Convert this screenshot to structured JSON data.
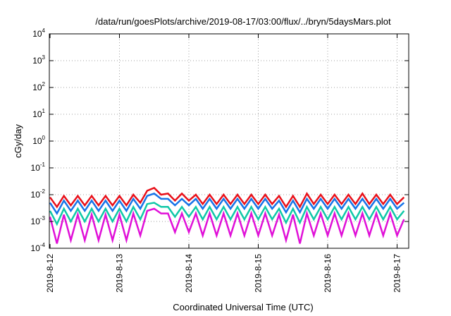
{
  "chart_data": {
    "type": "line",
    "title": "/data/run/goesPlots/archive/2019-08-17/03:00/flux/../bryn/5daysMars.plot",
    "xlabel": "Coordinated Universal Time (UTC)",
    "ylabel": "cGy/day",
    "y_scale": "log",
    "ylim": [
      0.0001,
      10000
    ],
    "xlim": [
      "2019-8-12",
      "2019-8-17 03:00"
    ],
    "x_ticks": [
      "2019-8-12",
      "2019-8-13",
      "2019-8-14",
      "2019-8-15",
      "2019-8-16",
      "2019-8-17"
    ],
    "y_ticks": [
      {
        "base": "10",
        "exp": "-4"
      },
      {
        "base": "10",
        "exp": "-3"
      },
      {
        "base": "10",
        "exp": "-2"
      },
      {
        "base": "10",
        "exp": "-1"
      },
      {
        "base": "10",
        "exp": "0"
      },
      {
        "base": "10",
        "exp": "1"
      },
      {
        "base": "10",
        "exp": "2"
      },
      {
        "base": "10",
        "exp": "3"
      },
      {
        "base": "10",
        "exp": "4"
      }
    ],
    "grid": true,
    "x_days": [
      0.0,
      0.1,
      0.2,
      0.3,
      0.4,
      0.5,
      0.6,
      0.7,
      0.8,
      0.9,
      1.0,
      1.1,
      1.2,
      1.3,
      1.4,
      1.5,
      1.6,
      1.7,
      1.8,
      1.9,
      2.0,
      2.1,
      2.2,
      2.3,
      2.4,
      2.5,
      2.6,
      2.7,
      2.8,
      2.9,
      3.0,
      3.1,
      3.2,
      3.3,
      3.4,
      3.5,
      3.6,
      3.7,
      3.8,
      3.9,
      4.0,
      4.1,
      4.2,
      4.3,
      4.4,
      4.5,
      4.6,
      4.7,
      4.8,
      4.9,
      5.0,
      5.1
    ],
    "series": [
      {
        "color": "#e8101a",
        "values": [
          0.008,
          0.0035,
          0.009,
          0.004,
          0.009,
          0.004,
          0.009,
          0.004,
          0.009,
          0.004,
          0.009,
          0.004,
          0.01,
          0.005,
          0.014,
          0.018,
          0.01,
          0.011,
          0.006,
          0.011,
          0.006,
          0.01,
          0.0045,
          0.01,
          0.0045,
          0.01,
          0.0045,
          0.01,
          0.0045,
          0.01,
          0.0045,
          0.01,
          0.0045,
          0.009,
          0.0035,
          0.009,
          0.0035,
          0.011,
          0.0045,
          0.01,
          0.0045,
          0.01,
          0.0045,
          0.01,
          0.0045,
          0.011,
          0.0045,
          0.01,
          0.0045,
          0.01,
          0.0045,
          0.008
        ]
      },
      {
        "color": "#1874e8",
        "values": [
          0.005,
          0.002,
          0.006,
          0.0025,
          0.006,
          0.0025,
          0.006,
          0.0025,
          0.006,
          0.0025,
          0.006,
          0.0025,
          0.007,
          0.003,
          0.009,
          0.011,
          0.007,
          0.007,
          0.004,
          0.007,
          0.004,
          0.007,
          0.003,
          0.007,
          0.003,
          0.007,
          0.003,
          0.007,
          0.003,
          0.007,
          0.003,
          0.007,
          0.003,
          0.006,
          0.0022,
          0.006,
          0.0022,
          0.007,
          0.003,
          0.007,
          0.003,
          0.007,
          0.003,
          0.007,
          0.003,
          0.007,
          0.003,
          0.007,
          0.003,
          0.007,
          0.003,
          0.005
        ]
      },
      {
        "color": "#10c8a8",
        "values": [
          0.0025,
          0.0008,
          0.003,
          0.001,
          0.003,
          0.001,
          0.003,
          0.001,
          0.003,
          0.001,
          0.003,
          0.001,
          0.0035,
          0.0012,
          0.0045,
          0.005,
          0.0035,
          0.0035,
          0.0015,
          0.0035,
          0.0015,
          0.0035,
          0.0012,
          0.0035,
          0.0012,
          0.0035,
          0.0012,
          0.0035,
          0.0012,
          0.0035,
          0.0012,
          0.0035,
          0.0012,
          0.003,
          0.0009,
          0.003,
          0.0009,
          0.0035,
          0.0012,
          0.0035,
          0.0012,
          0.0035,
          0.0012,
          0.0035,
          0.0012,
          0.0035,
          0.0012,
          0.0035,
          0.0012,
          0.0035,
          0.0012,
          0.0025
        ]
      },
      {
        "color": "#e010d8",
        "values": [
          0.0015,
          0.00015,
          0.0018,
          0.0002,
          0.0018,
          0.0002,
          0.0018,
          0.0002,
          0.0018,
          0.0002,
          0.0018,
          0.0002,
          0.002,
          0.0003,
          0.0025,
          0.003,
          0.002,
          0.002,
          0.0004,
          0.002,
          0.0004,
          0.002,
          0.0003,
          0.002,
          0.0003,
          0.002,
          0.0003,
          0.002,
          0.0003,
          0.002,
          0.0003,
          0.002,
          0.0003,
          0.0018,
          0.0002,
          0.0018,
          0.00015,
          0.002,
          0.0003,
          0.002,
          0.0003,
          0.002,
          0.0003,
          0.002,
          0.0003,
          0.002,
          0.0003,
          0.002,
          0.0003,
          0.002,
          0.0003,
          0.0012
        ]
      }
    ]
  }
}
